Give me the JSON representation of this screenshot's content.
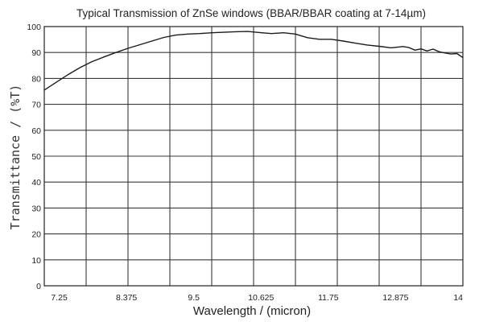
{
  "chart_data": {
    "type": "line",
    "title": "Typical Transmission of ZnSe windows (BBAR/BBAR coating at 7-14µm)",
    "xlabel": "Wavelength / (micron)",
    "ylabel": "Transmittance / (%T)",
    "xlim": [
      7,
      14
    ],
    "ylim": [
      0,
      100
    ],
    "x_ticks": [
      "7.25",
      "8.375",
      "9.5",
      "10.625",
      "11.75",
      "12.875",
      "14"
    ],
    "y_ticks": [
      "0",
      "10",
      "20",
      "30",
      "40",
      "50",
      "60",
      "70",
      "80",
      "90",
      "100"
    ],
    "grid": true,
    "series": [
      {
        "values_x": [
          7.0,
          7.2,
          7.4,
          7.6,
          7.8,
          8.0,
          8.2,
          8.4,
          8.6,
          8.8,
          9.0,
          9.2,
          9.4,
          9.6,
          9.8,
          10.0,
          10.2,
          10.4,
          10.6,
          10.8,
          11.0,
          11.2,
          11.4,
          11.6,
          11.8,
          12.0,
          12.2,
          12.4,
          12.6,
          12.8,
          13.0,
          13.1,
          13.2,
          13.3,
          13.4,
          13.5,
          13.6,
          13.7,
          13.8,
          13.9,
          14.0
        ],
        "values_y": [
          75.5,
          78.5,
          81.5,
          84.2,
          86.5,
          88.3,
          90.0,
          91.6,
          93.0,
          94.4,
          95.8,
          96.7,
          97.1,
          97.3,
          97.6,
          97.8,
          98.0,
          98.1,
          97.7,
          97.3,
          97.6,
          97.1,
          95.7,
          95.1,
          95.1,
          94.4,
          93.6,
          92.9,
          92.4,
          91.8,
          92.3,
          91.9,
          90.9,
          91.4,
          90.6,
          91.3,
          90.3,
          89.8,
          89.4,
          89.6,
          88.0
        ]
      }
    ]
  }
}
